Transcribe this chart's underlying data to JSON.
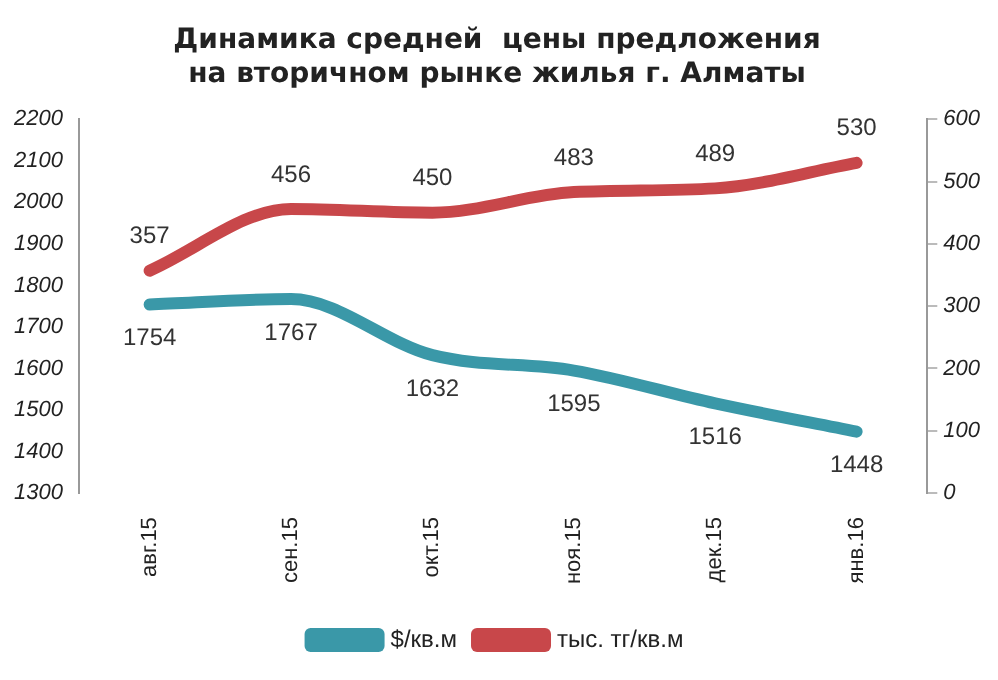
{
  "chart_data": {
    "type": "line",
    "title": "Динамика средней  цены предложения\nна вторичном рынке жилья г. Алматы",
    "categories": [
      "авг.15",
      "сен.15",
      "окт.15",
      "ноя.15",
      "дек.15",
      "янв.16"
    ],
    "series": [
      {
        "name": "$/кв.м",
        "color": "#3a98a8",
        "values": [
          1754,
          1767,
          1632,
          1595,
          1516,
          1448
        ]
      },
      {
        "name": "тыс. тг/кв.м",
        "color": "#c8474a",
        "axis": "y2",
        "values": [
          357,
          456,
          450,
          483,
          489,
          530
        ]
      }
    ],
    "ylim": [
      1300,
      2200
    ],
    "yticks": [
      1300,
      1400,
      1500,
      1600,
      1700,
      1800,
      1900,
      2000,
      2100,
      2200
    ],
    "y2lim": [
      0,
      600
    ],
    "y2ticks": [
      0,
      100,
      200,
      300,
      400,
      500,
      600
    ],
    "data_labels": true,
    "grid": false,
    "legend": "bottom",
    "marker": "none",
    "line_style": "solid"
  }
}
